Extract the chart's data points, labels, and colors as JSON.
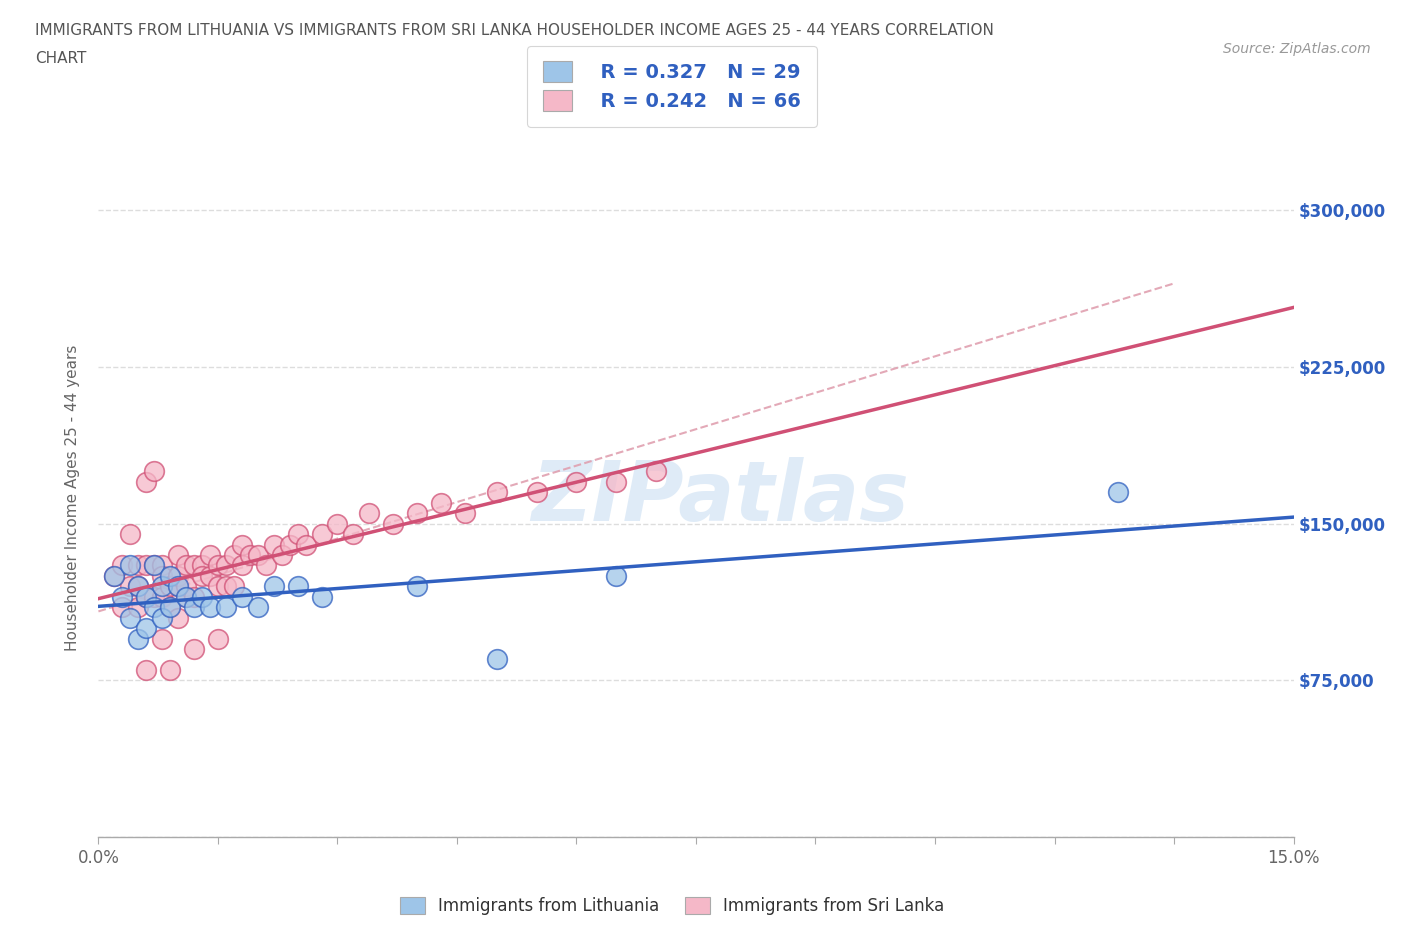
{
  "title_line1": "IMMIGRANTS FROM LITHUANIA VS IMMIGRANTS FROM SRI LANKA HOUSEHOLDER INCOME AGES 25 - 44 YEARS CORRELATION",
  "title_line2": "CHART",
  "source_text": "Source: ZipAtlas.com",
  "ylabel": "Householder Income Ages 25 - 44 years",
  "xlim": [
    0.0,
    0.15
  ],
  "ylim": [
    0,
    325000
  ],
  "ytick_positions": [
    0,
    75000,
    150000,
    225000,
    300000
  ],
  "ytick_labels": [
    "",
    "$75,000",
    "$150,000",
    "$225,000",
    "$300,000"
  ],
  "xtick_positions": [
    0.0,
    0.015,
    0.03,
    0.045,
    0.06,
    0.075,
    0.09,
    0.105,
    0.12,
    0.135,
    0.15
  ],
  "xtick_labels_show": [
    "0.0%",
    "",
    "",
    "",
    "",
    "",
    "",
    "",
    "",
    "",
    "15.0%"
  ],
  "background_color": "#ffffff",
  "grid_color": "#dddddd",
  "title_color": "#555555",
  "color_lithuania": "#9ec5e8",
  "color_srilanka": "#f5b8c8",
  "line_color_lithuania": "#3060c0",
  "line_color_srilanka": "#d05075",
  "line_color_dashed": "#e0a0b0",
  "R_lithuania": "0.327",
  "N_lithuania": "29",
  "R_srilanka": "0.242",
  "N_srilanka": "66",
  "watermark_text": "ZIPatlas",
  "legend_label_blue": "Immigrants from Lithuania",
  "legend_label_pink": "Immigrants from Sri Lanka",
  "lithuania_x": [
    0.002,
    0.003,
    0.004,
    0.004,
    0.005,
    0.005,
    0.006,
    0.006,
    0.007,
    0.007,
    0.008,
    0.008,
    0.009,
    0.009,
    0.01,
    0.011,
    0.012,
    0.013,
    0.014,
    0.016,
    0.018,
    0.02,
    0.022,
    0.025,
    0.028,
    0.04,
    0.05,
    0.065,
    0.128
  ],
  "lithuania_y": [
    125000,
    115000,
    130000,
    105000,
    120000,
    95000,
    115000,
    100000,
    110000,
    130000,
    105000,
    120000,
    125000,
    110000,
    120000,
    115000,
    110000,
    115000,
    110000,
    110000,
    115000,
    110000,
    120000,
    120000,
    115000,
    120000,
    85000,
    125000,
    165000
  ],
  "srilanka_x": [
    0.002,
    0.003,
    0.003,
    0.004,
    0.004,
    0.005,
    0.005,
    0.005,
    0.006,
    0.006,
    0.006,
    0.007,
    0.007,
    0.007,
    0.008,
    0.008,
    0.008,
    0.009,
    0.009,
    0.01,
    0.01,
    0.01,
    0.011,
    0.011,
    0.011,
    0.012,
    0.012,
    0.013,
    0.013,
    0.014,
    0.014,
    0.015,
    0.015,
    0.016,
    0.016,
    0.017,
    0.017,
    0.018,
    0.018,
    0.019,
    0.02,
    0.021,
    0.022,
    0.023,
    0.024,
    0.025,
    0.026,
    0.028,
    0.03,
    0.032,
    0.034,
    0.037,
    0.04,
    0.043,
    0.046,
    0.05,
    0.055,
    0.06,
    0.065,
    0.07,
    0.01,
    0.008,
    0.006,
    0.015,
    0.012,
    0.009
  ],
  "srilanka_y": [
    125000,
    130000,
    110000,
    120000,
    145000,
    130000,
    110000,
    120000,
    130000,
    115000,
    170000,
    130000,
    115000,
    175000,
    130000,
    115000,
    125000,
    120000,
    110000,
    120000,
    135000,
    125000,
    130000,
    115000,
    120000,
    130000,
    115000,
    130000,
    125000,
    135000,
    125000,
    130000,
    120000,
    130000,
    120000,
    135000,
    120000,
    140000,
    130000,
    135000,
    135000,
    130000,
    140000,
    135000,
    140000,
    145000,
    140000,
    145000,
    150000,
    145000,
    155000,
    150000,
    155000,
    160000,
    155000,
    165000,
    165000,
    170000,
    170000,
    175000,
    105000,
    95000,
    80000,
    95000,
    90000,
    80000
  ]
}
